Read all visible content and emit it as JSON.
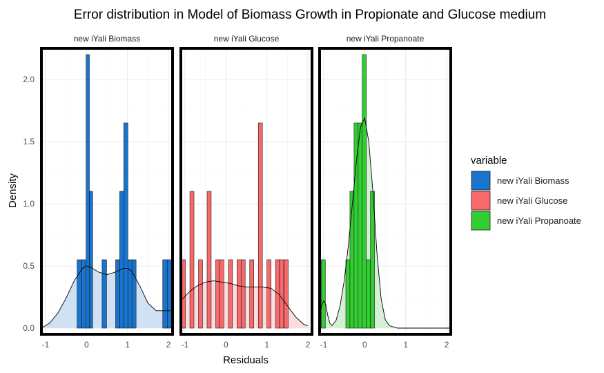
{
  "chart_data": {
    "type": "histogram",
    "title": "Error distribution in Model of Biomass Growth in Propionate and Glucose medium",
    "xlabel": "Residuals",
    "ylabel": "Density",
    "xlim": [
      -1.1,
      2.1
    ],
    "ylim": [
      -0.05,
      2.25
    ],
    "x_ticks": [
      "-1",
      "0",
      "1",
      "2"
    ],
    "y_ticks": [
      "0.0",
      "0.5",
      "1.0",
      "1.5",
      "2.0"
    ],
    "x_tick_values": [
      -1,
      0,
      1,
      2
    ],
    "y_tick_values": [
      0,
      0.5,
      1.0,
      1.5,
      2.0
    ],
    "grid": true,
    "legend": {
      "title": "variable",
      "position": "right",
      "items": [
        "new iYali Biomass",
        "new iYali Glucose",
        "new iYali Propanoate"
      ]
    },
    "panels": [
      {
        "name": "new iYali Biomass",
        "color": "#1874CD",
        "density_fill": "#D0E1F4",
        "bins": [
          {
            "x0": -0.23,
            "x1": -0.12,
            "value": 0.55
          },
          {
            "x0": -0.12,
            "x1": -0.01,
            "value": 0.55
          },
          {
            "x0": -0.01,
            "x1": 0.07,
            "value": 2.2
          },
          {
            "x0": 0.07,
            "x1": 0.15,
            "value": 1.1
          },
          {
            "x0": 0.38,
            "x1": 0.49,
            "value": 0.55
          },
          {
            "x0": 0.71,
            "x1": 0.81,
            "value": 0.55
          },
          {
            "x0": 0.81,
            "x1": 0.91,
            "value": 1.1
          },
          {
            "x0": 0.91,
            "x1": 1.01,
            "value": 1.65
          },
          {
            "x0": 1.01,
            "x1": 1.11,
            "value": 0.55
          },
          {
            "x0": 1.11,
            "x1": 1.21,
            "value": 0.55
          },
          {
            "x0": 1.86,
            "x1": 1.97,
            "value": 0.55
          },
          {
            "x0": 1.97,
            "x1": 2.07,
            "value": 0.55
          }
        ],
        "density": {
          "x": [
            -1.1,
            -0.9,
            -0.7,
            -0.5,
            -0.3,
            -0.1,
            0.0,
            0.1,
            0.3,
            0.5,
            0.7,
            0.9,
            1.0,
            1.1,
            1.3,
            1.5,
            1.7,
            1.8,
            1.9,
            2.0,
            2.05
          ],
          "y": [
            0.0,
            0.04,
            0.12,
            0.24,
            0.38,
            0.48,
            0.5,
            0.49,
            0.45,
            0.43,
            0.45,
            0.48,
            0.48,
            0.46,
            0.34,
            0.2,
            0.14,
            0.14,
            0.14,
            0.14,
            0.14
          ]
        }
      },
      {
        "name": "new iYali Glucose",
        "color": "#F8696B",
        "density_fill": "#FCDCDC",
        "bins": [
          {
            "x0": -1.09,
            "x1": -0.99,
            "value": 0.55
          },
          {
            "x0": -0.88,
            "x1": -0.78,
            "value": 1.1
          },
          {
            "x0": -0.67,
            "x1": -0.57,
            "value": 0.55
          },
          {
            "x0": -0.46,
            "x1": -0.36,
            "value": 1.1
          },
          {
            "x0": -0.25,
            "x1": -0.15,
            "value": 0.55
          },
          {
            "x0": -0.15,
            "x1": -0.05,
            "value": 0.55
          },
          {
            "x0": 0.06,
            "x1": 0.16,
            "value": 0.55
          },
          {
            "x0": 0.27,
            "x1": 0.37,
            "value": 0.55
          },
          {
            "x0": 0.37,
            "x1": 0.47,
            "value": 0.55
          },
          {
            "x0": 0.58,
            "x1": 0.68,
            "value": 0.55
          },
          {
            "x0": 0.79,
            "x1": 0.89,
            "value": 1.65
          },
          {
            "x0": 1.0,
            "x1": 1.1,
            "value": 0.55
          },
          {
            "x0": 1.21,
            "x1": 1.31,
            "value": 0.55
          },
          {
            "x0": 1.31,
            "x1": 1.41,
            "value": 0.55
          },
          {
            "x0": 1.42,
            "x1": 1.52,
            "value": 0.55
          }
        ],
        "density": {
          "x": [
            -1.1,
            -0.9,
            -0.7,
            -0.5,
            -0.3,
            -0.1,
            0.1,
            0.3,
            0.5,
            0.7,
            0.9,
            1.1,
            1.3,
            1.5,
            1.7,
            1.9,
            2.0
          ],
          "y": [
            0.22,
            0.29,
            0.34,
            0.37,
            0.38,
            0.37,
            0.36,
            0.34,
            0.33,
            0.33,
            0.33,
            0.32,
            0.27,
            0.18,
            0.09,
            0.03,
            0.02
          ]
        }
      },
      {
        "name": "new iYali Propanoate",
        "color": "#32CD32",
        "density_fill": "#D5F1D5",
        "bins": [
          {
            "x0": -1.06,
            "x1": -0.96,
            "value": 0.55
          },
          {
            "x0": -0.46,
            "x1": -0.36,
            "value": 0.55
          },
          {
            "x0": -0.36,
            "x1": -0.26,
            "value": 1.1
          },
          {
            "x0": -0.26,
            "x1": -0.16,
            "value": 1.65
          },
          {
            "x0": -0.16,
            "x1": -0.06,
            "value": 1.65
          },
          {
            "x0": -0.06,
            "x1": 0.04,
            "value": 2.2
          },
          {
            "x0": 0.04,
            "x1": 0.14,
            "value": 0.55
          },
          {
            "x0": 0.14,
            "x1": 0.24,
            "value": 1.1
          }
        ],
        "density": {
          "x": [
            -1.1,
            -1.05,
            -1.0,
            -0.95,
            -0.9,
            -0.85,
            -0.8,
            -0.7,
            -0.6,
            -0.5,
            -0.4,
            -0.3,
            -0.2,
            -0.1,
            0.0,
            0.1,
            0.2,
            0.3,
            0.4,
            0.5,
            0.6,
            0.8,
            1.0,
            1.5,
            2.1
          ],
          "y": [
            0.1,
            0.18,
            0.22,
            0.19,
            0.1,
            0.04,
            0.02,
            0.06,
            0.18,
            0.38,
            0.66,
            1.0,
            1.35,
            1.62,
            1.69,
            1.5,
            1.1,
            0.6,
            0.24,
            0.07,
            0.02,
            0.0,
            0.0,
            0.0,
            0.0
          ]
        }
      }
    ]
  }
}
